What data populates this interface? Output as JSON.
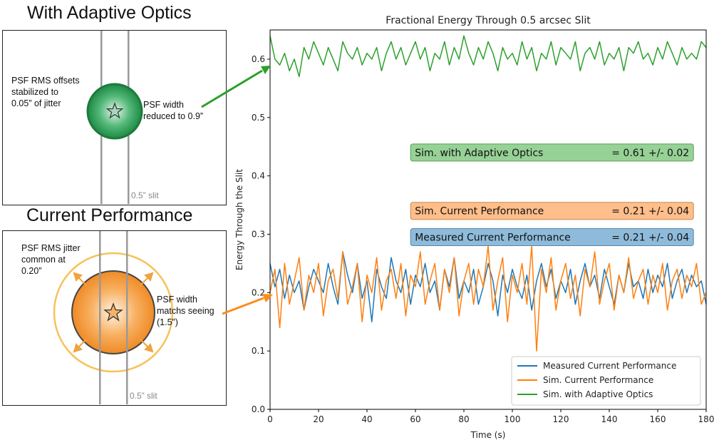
{
  "left_panels": {
    "adaptive": {
      "title": "With Adaptive Optics",
      "offset_note": [
        "PSF RMS offsets",
        "stabilized to",
        "0.05” of jitter"
      ],
      "width_note": [
        "PSF width",
        "reduced to 0.9”"
      ],
      "slit_label": "0.5” slit",
      "color": "#2ca02c"
    },
    "current": {
      "title": "Current Performance",
      "jitter_note": [
        "PSF RMS jitter",
        "common at",
        "0.20”"
      ],
      "width_note": [
        "PSF width",
        "matchs seeing",
        "(1.5”)"
      ],
      "slit_label": "0.5” slit",
      "color": "#ff7f0e"
    }
  },
  "chart_data": {
    "type": "line",
    "title": "Fractional Energy Through 0.5 arcsec Slit",
    "xlabel": "Time (s)",
    "ylabel": "Energy Through the Slit",
    "xlim": [
      0,
      180
    ],
    "ylim": [
      0,
      0.65
    ],
    "xticks": [
      0,
      20,
      40,
      60,
      80,
      100,
      120,
      140,
      160,
      180
    ],
    "yticks": [
      0.0,
      0.1,
      0.2,
      0.3,
      0.4,
      0.5,
      0.6
    ],
    "series": [
      {
        "name": "Measured Current Performance",
        "color": "#1f77b4",
        "x": [
          0,
          2,
          4,
          6,
          8,
          10,
          12,
          14,
          16,
          18,
          20,
          22,
          24,
          26,
          28,
          30,
          32,
          34,
          36,
          38,
          40,
          42,
          44,
          46,
          48,
          50,
          52,
          54,
          56,
          58,
          60,
          62,
          64,
          66,
          68,
          70,
          72,
          74,
          76,
          78,
          80,
          82,
          84,
          86,
          88,
          90,
          92,
          94,
          96,
          98,
          100,
          102,
          104,
          106,
          108,
          110,
          112,
          114,
          116,
          118,
          120,
          122,
          124,
          126,
          128,
          130,
          132,
          134,
          136,
          138,
          140,
          142,
          144,
          146,
          148,
          150,
          152,
          154,
          156,
          158,
          160,
          162,
          164,
          166,
          168,
          170,
          172,
          174,
          176,
          178,
          180
        ],
        "y": [
          0.25,
          0.21,
          0.24,
          0.19,
          0.23,
          0.2,
          0.22,
          0.17,
          0.21,
          0.24,
          0.22,
          0.2,
          0.25,
          0.21,
          0.18,
          0.27,
          0.23,
          0.2,
          0.25,
          0.19,
          0.22,
          0.15,
          0.24,
          0.21,
          0.19,
          0.26,
          0.22,
          0.2,
          0.24,
          0.18,
          0.23,
          0.21,
          0.25,
          0.2,
          0.22,
          0.17,
          0.24,
          0.21,
          0.26,
          0.19,
          0.22,
          0.2,
          0.24,
          0.18,
          0.21,
          0.25,
          0.22,
          0.16,
          0.23,
          0.2,
          0.24,
          0.21,
          0.19,
          0.23,
          0.17,
          0.22,
          0.25,
          0.21,
          0.24,
          0.19,
          0.22,
          0.2,
          0.24,
          0.18,
          0.22,
          0.25,
          0.21,
          0.23,
          0.19,
          0.24,
          0.21,
          0.18,
          0.23,
          0.2,
          0.25,
          0.21,
          0.22,
          0.19,
          0.24,
          0.2,
          0.23,
          0.21,
          0.25,
          0.19,
          0.22,
          0.24,
          0.2,
          0.23,
          0.21,
          0.22,
          0.18
        ]
      },
      {
        "name": "Sim. Current Performance",
        "color": "#ff7f0e",
        "x": [
          0,
          2,
          4,
          6,
          8,
          10,
          12,
          14,
          16,
          18,
          20,
          22,
          24,
          26,
          28,
          30,
          32,
          34,
          36,
          38,
          40,
          42,
          44,
          46,
          48,
          50,
          52,
          54,
          56,
          58,
          60,
          62,
          64,
          66,
          68,
          70,
          72,
          74,
          76,
          78,
          80,
          82,
          84,
          86,
          88,
          90,
          92,
          94,
          96,
          98,
          100,
          102,
          104,
          106,
          108,
          110,
          112,
          114,
          116,
          118,
          120,
          122,
          124,
          126,
          128,
          130,
          132,
          134,
          136,
          138,
          140,
          142,
          144,
          146,
          148,
          150,
          152,
          154,
          156,
          158,
          160,
          162,
          164,
          166,
          168,
          170,
          172,
          174,
          176,
          178,
          180
        ],
        "y": [
          0.2,
          0.24,
          0.14,
          0.25,
          0.18,
          0.22,
          0.26,
          0.17,
          0.23,
          0.2,
          0.25,
          0.16,
          0.22,
          0.24,
          0.19,
          0.27,
          0.18,
          0.21,
          0.25,
          0.15,
          0.23,
          0.2,
          0.26,
          0.17,
          0.22,
          0.24,
          0.19,
          0.25,
          0.16,
          0.23,
          0.21,
          0.27,
          0.18,
          0.22,
          0.25,
          0.17,
          0.24,
          0.2,
          0.26,
          0.16,
          0.22,
          0.25,
          0.18,
          0.24,
          0.21,
          0.28,
          0.17,
          0.22,
          0.26,
          0.15,
          0.23,
          0.2,
          0.25,
          0.18,
          0.28,
          0.1,
          0.24,
          0.2,
          0.26,
          0.17,
          0.22,
          0.25,
          0.19,
          0.23,
          0.16,
          0.24,
          0.21,
          0.27,
          0.18,
          0.22,
          0.25,
          0.17,
          0.23,
          0.2,
          0.26,
          0.19,
          0.22,
          0.24,
          0.18,
          0.23,
          0.2,
          0.25,
          0.17,
          0.22,
          0.24,
          0.19,
          0.23,
          0.21,
          0.25,
          0.18,
          0.2
        ]
      },
      {
        "name": "Sim. with Adaptive Optics",
        "color": "#2ca02c",
        "x": [
          0,
          2,
          4,
          6,
          8,
          10,
          12,
          14,
          16,
          18,
          20,
          22,
          24,
          26,
          28,
          30,
          32,
          34,
          36,
          38,
          40,
          42,
          44,
          46,
          48,
          50,
          52,
          54,
          56,
          58,
          60,
          62,
          64,
          66,
          68,
          70,
          72,
          74,
          76,
          78,
          80,
          82,
          84,
          86,
          88,
          90,
          92,
          94,
          96,
          98,
          100,
          102,
          104,
          106,
          108,
          110,
          112,
          114,
          116,
          118,
          120,
          122,
          124,
          126,
          128,
          130,
          132,
          134,
          136,
          138,
          140,
          142,
          144,
          146,
          148,
          150,
          152,
          154,
          156,
          158,
          160,
          162,
          164,
          166,
          168,
          170,
          172,
          174,
          176,
          178,
          180
        ],
        "y": [
          0.64,
          0.6,
          0.59,
          0.61,
          0.58,
          0.6,
          0.57,
          0.62,
          0.6,
          0.63,
          0.61,
          0.59,
          0.62,
          0.6,
          0.58,
          0.63,
          0.61,
          0.6,
          0.62,
          0.59,
          0.61,
          0.6,
          0.62,
          0.58,
          0.61,
          0.63,
          0.6,
          0.62,
          0.59,
          0.61,
          0.63,
          0.6,
          0.62,
          0.58,
          0.61,
          0.6,
          0.63,
          0.59,
          0.62,
          0.6,
          0.64,
          0.61,
          0.59,
          0.62,
          0.6,
          0.63,
          0.61,
          0.58,
          0.62,
          0.6,
          0.61,
          0.59,
          0.63,
          0.6,
          0.62,
          0.58,
          0.61,
          0.6,
          0.63,
          0.59,
          0.62,
          0.61,
          0.6,
          0.63,
          0.58,
          0.61,
          0.62,
          0.6,
          0.63,
          0.59,
          0.61,
          0.6,
          0.62,
          0.58,
          0.62,
          0.61,
          0.63,
          0.6,
          0.61,
          0.59,
          0.62,
          0.6,
          0.63,
          0.61,
          0.59,
          0.62,
          0.6,
          0.61,
          0.6,
          0.63,
          0.62
        ]
      }
    ],
    "annotations": [
      {
        "label": "Sim. with Adaptive Optics",
        "value": "= 0.61 +/- 0.02",
        "color": "#2ca02c",
        "y": 0.44
      },
      {
        "label": "Sim. Current Performance",
        "value": "= 0.21 +/- 0.04",
        "color": "#ff7f0e",
        "y": 0.34
      },
      {
        "label": "Measured Current Performance",
        "value": "= 0.21 +/- 0.04",
        "color": "#1f77b4",
        "y": 0.295
      }
    ],
    "legend_position": "lower-right"
  }
}
